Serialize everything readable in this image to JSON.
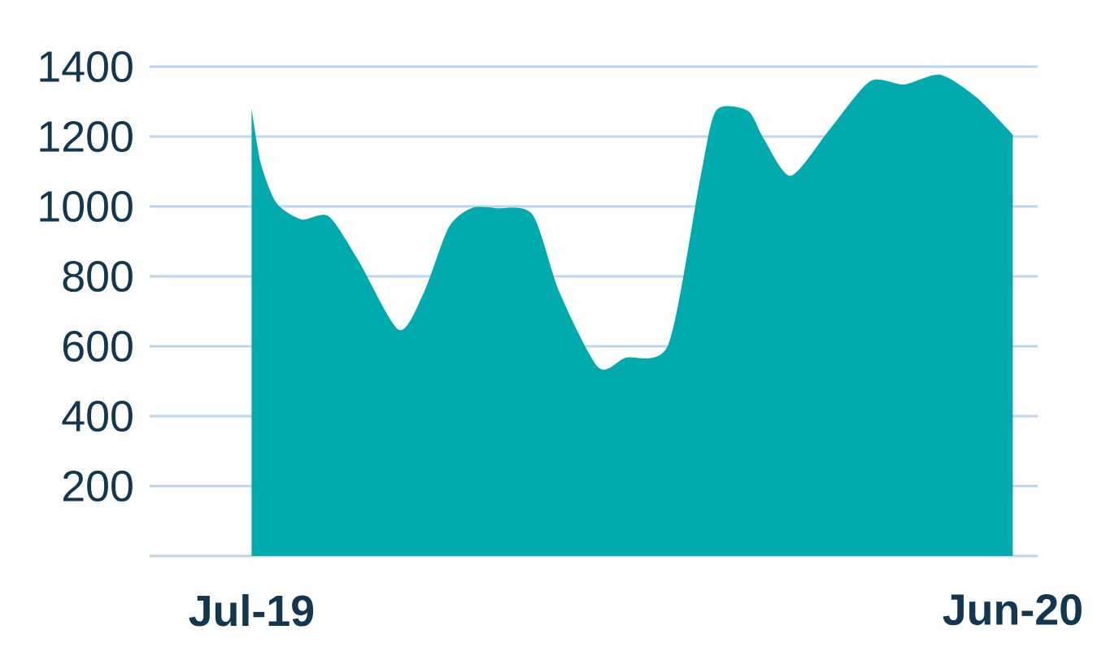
{
  "chart_data": {
    "type": "area",
    "x": [
      "2019-07-01",
      "2019-07-05",
      "2019-07-12",
      "2019-07-23",
      "2019-08-04",
      "2019-08-17",
      "2019-09-04",
      "2019-09-15",
      "2019-09-26",
      "2019-10-06",
      "2019-10-17",
      "2019-11-02",
      "2019-11-14",
      "2019-12-01",
      "2019-12-13",
      "2020-01-01",
      "2020-01-15",
      "2020-01-22",
      "2020-02-05",
      "2020-02-12",
      "2020-02-24",
      "2020-03-12",
      "2020-03-30",
      "2020-04-14",
      "2020-04-30",
      "2020-05-16",
      "2020-06-01"
    ],
    "series": [
      {
        "color": "#00aaad",
        "values": [
          1280,
          1125,
          1010,
          963,
          972,
          847,
          647,
          753,
          940,
          995,
          995,
          977,
          753,
          540,
          567,
          605,
          1079,
          1274,
          1274,
          1195,
          1088,
          1219,
          1358,
          1349,
          1377,
          1312,
          1205
        ]
      }
    ],
    "xlim": [
      "2019-05-17",
      "2020-06-12"
    ],
    "xticks": [
      {
        "value": "2019-07-01",
        "label": "Jul-19"
      },
      {
        "value": "2020-06-01",
        "label": "Jun-20"
      }
    ],
    "ylim": [
      0,
      1400
    ],
    "yticks": [
      {
        "value": 0,
        "label": null
      },
      200,
      400,
      600,
      800,
      1000,
      1200,
      1400
    ],
    "grid": "y"
  }
}
